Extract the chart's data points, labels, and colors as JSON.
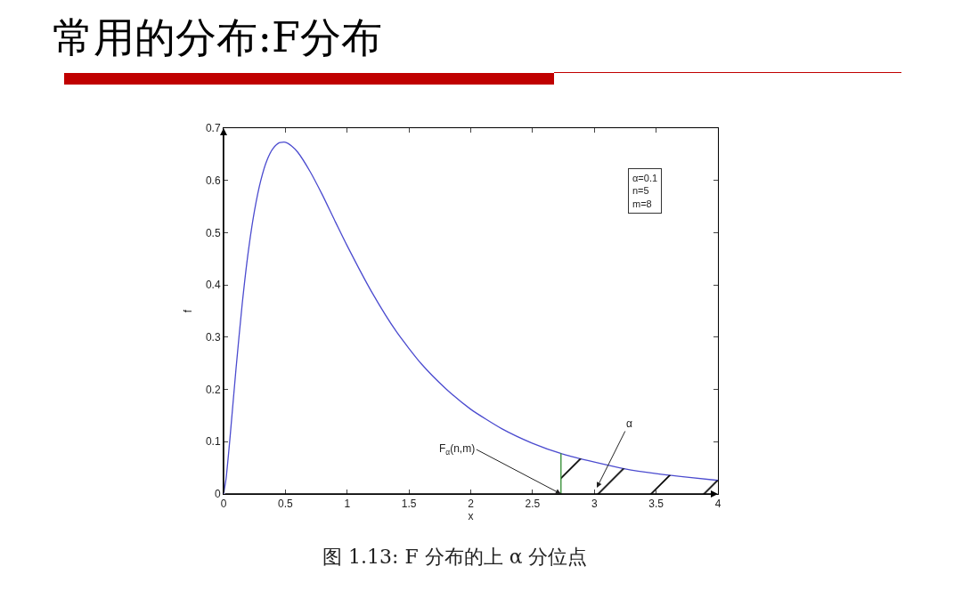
{
  "chart_data": {
    "type": "line",
    "title": "常用的分布:F分布",
    "xlabel": "x",
    "ylabel": "f",
    "xlim": [
      0,
      4
    ],
    "ylim": [
      0,
      0.7
    ],
    "xticks": [
      0,
      0.5,
      1,
      1.5,
      2,
      2.5,
      3,
      3.5,
      4
    ],
    "yticks": [
      0,
      0.1,
      0.2,
      0.3,
      0.4,
      0.5,
      0.6,
      0.7
    ],
    "grid": false,
    "series": [
      {
        "color": "#4b4bcf",
        "x": [
          0,
          0.02,
          0.05,
          0.1,
          0.15,
          0.2,
          0.25,
          0.3,
          0.35,
          0.4,
          0.45,
          0.5,
          0.55,
          0.6,
          0.7,
          0.8,
          0.9,
          1,
          1.2,
          1.4,
          1.6,
          1.8,
          2,
          2.25,
          2.5,
          2.75,
          3,
          3.25,
          3.5,
          3.75,
          4
        ],
        "values": [
          0,
          0.029,
          0.102,
          0.238,
          0.362,
          0.464,
          0.542,
          0.599,
          0.638,
          0.661,
          0.672,
          0.673,
          0.666,
          0.654,
          0.617,
          0.572,
          0.523,
          0.475,
          0.386,
          0.31,
          0.249,
          0.201,
          0.162,
          0.125,
          0.097,
          0.076,
          0.061,
          0.048,
          0.039,
          0.032,
          0.026
        ]
      },
      {
        "type": "area",
        "color": "#000000",
        "x": [
          2.73,
          2.75,
          3,
          3.25,
          3.5,
          3.75,
          4
        ],
        "values": [
          0.078,
          0.076,
          0.061,
          0.048,
          0.039,
          0.032,
          0.026
        ]
      },
      {
        "color": "#2e8b2e",
        "x": [
          2.73,
          2.73
        ],
        "values": [
          0,
          0.078
        ]
      }
    ],
    "annotations": [
      {
        "text": "F$_{α}$(n,m)",
        "x": 2.73,
        "y": 0
      },
      "α",
      "α=0.1\nn=5\nm=8",
      "图 1.13: F 分布的上 α 分位点"
    ]
  }
}
